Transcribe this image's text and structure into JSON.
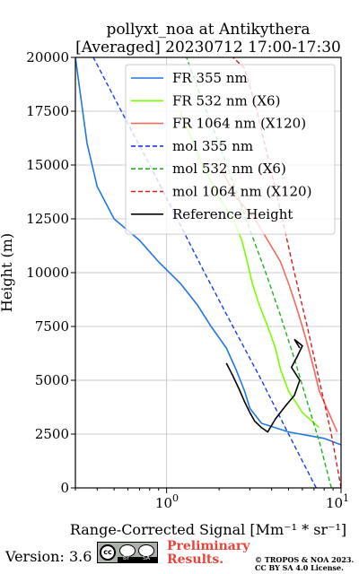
{
  "chart_data": {
    "type": "line",
    "title": "pollyxt_noa at Antikythera",
    "subtitle": "[Averaged] 20230712 17:00-17:30",
    "ylabel": "Height (m)",
    "xlabel": "Range-Corrected Signal [Mm⁻¹ * sr⁻¹]",
    "xscale": "log",
    "xlim": [
      0.3,
      10
    ],
    "ylim": [
      0,
      20000
    ],
    "yticks": [
      "0",
      "2500",
      "5000",
      "7500",
      "10000",
      "12500",
      "15000",
      "17500",
      "20000"
    ],
    "xtick_main": "10",
    "xtick_main_exp": "0",
    "xtick_second": "10",
    "xtick_second_exp": "1",
    "grid": true,
    "legend_position": "top-right",
    "series": [
      {
        "name": "FR 355 nm",
        "color": "#1f77e0",
        "style": "solid",
        "x": [
          10,
          8,
          5,
          3.5,
          3.0,
          2.8,
          2.5,
          2.2,
          1.8,
          1.5,
          1.2,
          0.9,
          0.7,
          0.5,
          0.4,
          0.35,
          0.3
        ],
        "y": [
          2000,
          2300,
          2600,
          3000,
          3700,
          4500,
          5500,
          6500,
          7500,
          8500,
          9500,
          10500,
          11500,
          12500,
          14000,
          16000,
          20000
        ]
      },
      {
        "name": "FR 532 nm (X6)",
        "color": "#7cfc00",
        "style": "solid",
        "x": [
          7.5,
          6,
          5,
          4.5,
          4.2,
          3.8,
          3.4,
          3.1,
          2.9,
          2.7,
          2.4,
          2.0,
          1.6,
          1.2
        ],
        "y": [
          2800,
          3500,
          4500,
          5500,
          6500,
          7500,
          8500,
          9500,
          10500,
          11500,
          12500,
          13500,
          15000,
          17500
        ]
      },
      {
        "name": "FR 1064 nm (X120)",
        "color": "#f46a5e",
        "style": "solid",
        "x": [
          9.5,
          8.5,
          7.5,
          7.0,
          6.5,
          6.0,
          5.5,
          5.0,
          4.5,
          3.8,
          3.2,
          2.5,
          2.0
        ],
        "y": [
          2600,
          3500,
          4500,
          5500,
          6500,
          7500,
          8500,
          9500,
          10500,
          11500,
          12500,
          13500,
          15000
        ]
      },
      {
        "name": "mol 355 nm",
        "color": "#1a3ee8",
        "style": "dashed",
        "x": [
          7.2,
          5.0,
          3.5,
          2.4,
          1.65,
          1.15,
          0.8,
          0.55,
          0.38,
          0.3
        ],
        "y": [
          0,
          2500,
          5000,
          7500,
          10000,
          12500,
          15000,
          17500,
          20000,
          21500
        ]
      },
      {
        "name": "mol 532 nm (X6)",
        "color": "#1db31d",
        "style": "dashed",
        "x": [
          8.8,
          7.6,
          6.4,
          5.4,
          4.5,
          3.7,
          3.0,
          2.45,
          2.0,
          1.6,
          1.3
        ],
        "y": [
          0,
          2000,
          4000,
          6000,
          8000,
          10000,
          12000,
          14000,
          16000,
          18000,
          20000
        ]
      },
      {
        "name": "mol 1064 nm (X120)",
        "color": "#d61e1e",
        "style": "dashed",
        "x": [
          10,
          8.8,
          7.5,
          6.4,
          5.4,
          4.6,
          3.9,
          3.3,
          2.8,
          2.4
        ],
        "y": [
          0,
          2500,
          5000,
          7500,
          10000,
          12500,
          15000,
          17500,
          19500,
          20000
        ]
      },
      {
        "name": "Reference Height",
        "color": "#000000",
        "style": "solid",
        "x": [
          2.2,
          2.4,
          2.6,
          2.8,
          3.0,
          3.2,
          3.5,
          3.8,
          4.2,
          4.8,
          5.4,
          5.8,
          5.2,
          5.6,
          6.0,
          5.4,
          5.8
        ],
        "y": [
          5800,
          5200,
          4600,
          4000,
          3500,
          3100,
          2800,
          2600,
          3200,
          3800,
          4300,
          5000,
          5600,
          6100,
          6600,
          6900,
          6500
        ]
      }
    ]
  },
  "footer": {
    "version_label": "Version: 3.6",
    "preliminary_line1": "Preliminary",
    "preliminary_line2": "Results.",
    "copyright_line1": "© TROPOS & NOA 2023.",
    "copyright_line2": "CC BY SA 4.0 License.",
    "cc_badge": {
      "text": "cc",
      "by": "BY",
      "sa": "SA"
    }
  }
}
